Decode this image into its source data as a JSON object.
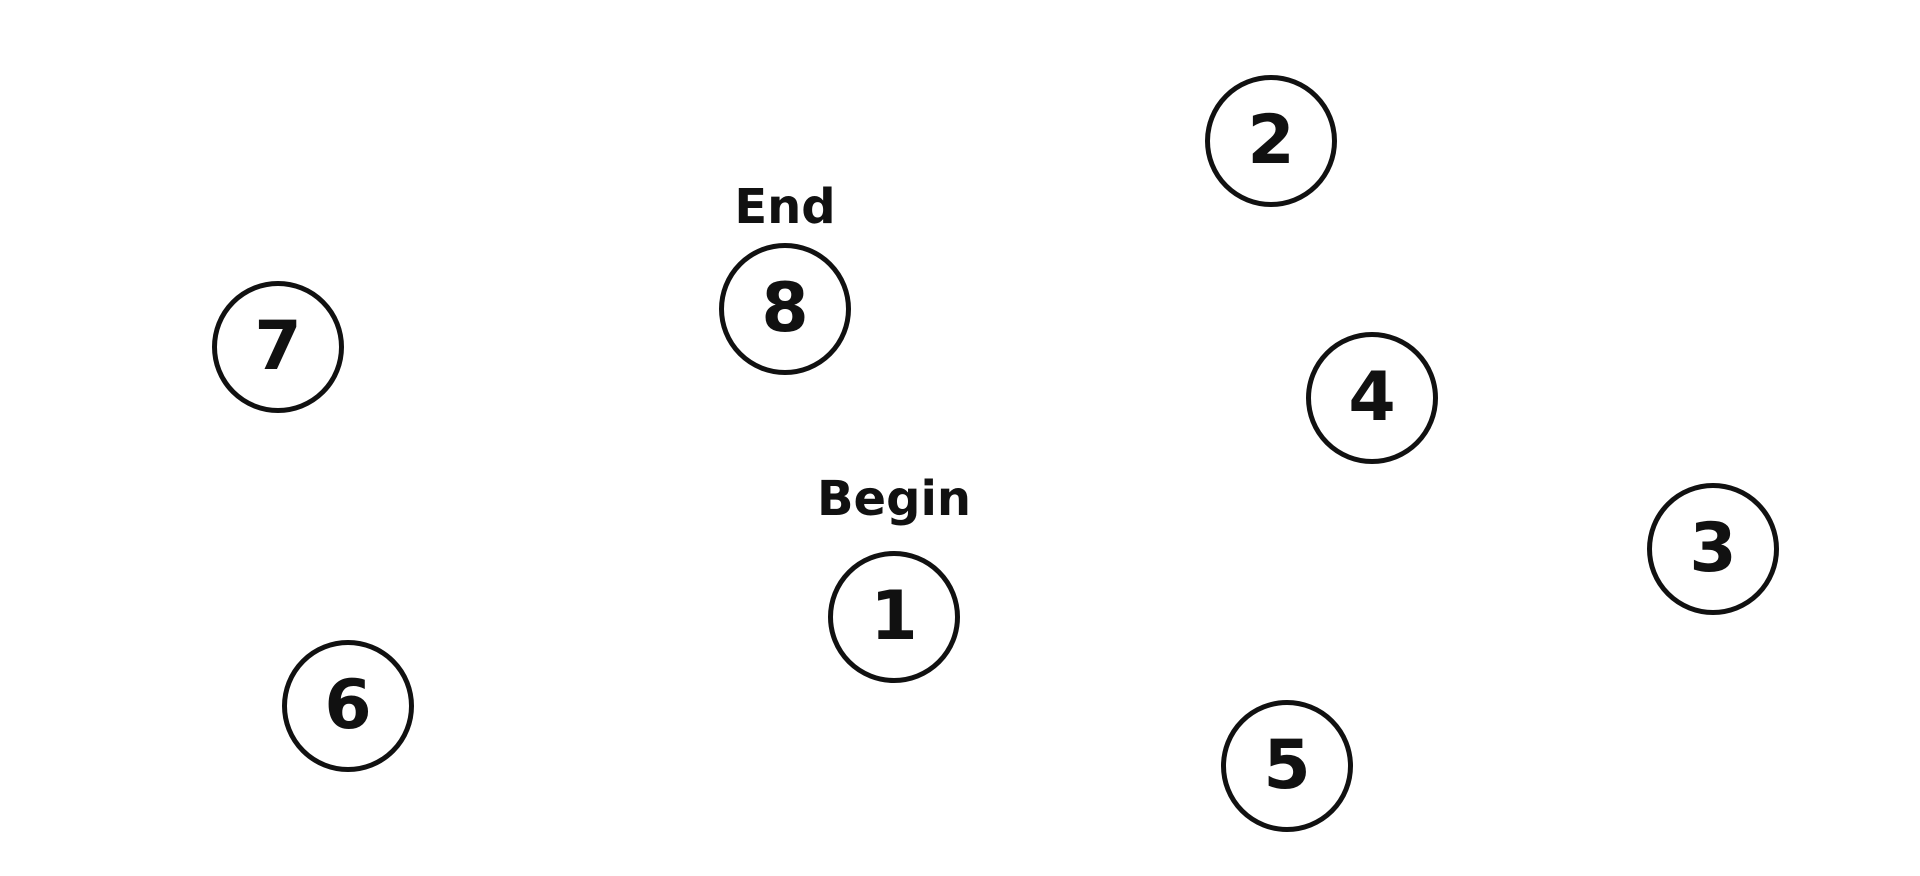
{
  "puzzle": {
    "labels": {
      "begin": "Begin",
      "end": "End"
    },
    "nodes": [
      {
        "number": "1"
      },
      {
        "number": "2"
      },
      {
        "number": "3"
      },
      {
        "number": "4"
      },
      {
        "number": "5"
      },
      {
        "number": "6"
      },
      {
        "number": "7"
      },
      {
        "number": "8"
      }
    ],
    "colors": {
      "stroke": "#111111",
      "background": "#ffffff"
    }
  }
}
